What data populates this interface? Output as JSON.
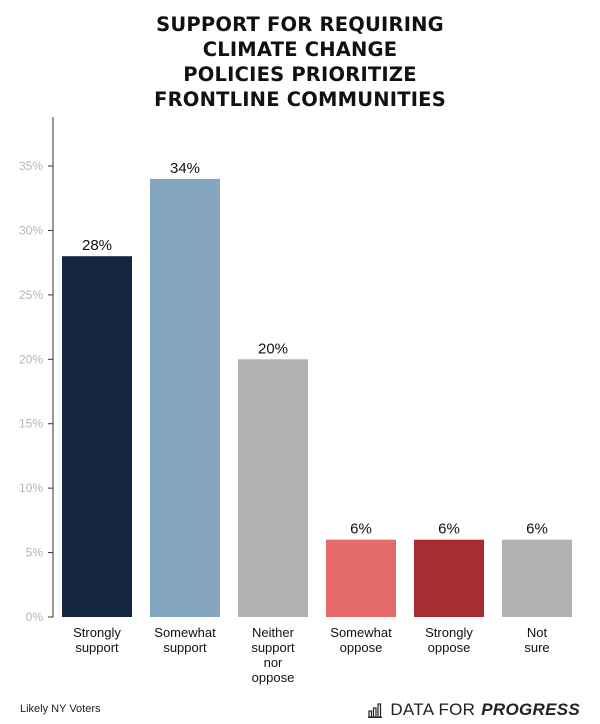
{
  "title_lines": [
    "SUPPORT FOR REQUIRING",
    "CLIMATE CHANGE",
    "POLICIES PRIORITIZE",
    "FRONTLINE COMMUNITIES"
  ],
  "footer": {
    "note": "Likely NY Voters",
    "brand_regular": "DATA FOR",
    "brand_bold": "PROGRESS",
    "brand_icon": "bar-chart-icon"
  },
  "chart_data": {
    "type": "bar",
    "title": "SUPPORT FOR REQUIRING CLIMATE CHANGE POLICIES PRIORITIZE FRONTLINE COMMUNITIES",
    "categories": [
      [
        "Strongly",
        "support"
      ],
      [
        "Somewhat",
        "support"
      ],
      [
        "Neither",
        "support",
        "nor",
        "oppose"
      ],
      [
        "Somewhat",
        "oppose"
      ],
      [
        "Strongly",
        "oppose"
      ],
      [
        "Not",
        "sure"
      ]
    ],
    "values": [
      28,
      34,
      20,
      6,
      6,
      6
    ],
    "value_labels": [
      "28%",
      "34%",
      "20%",
      "6%",
      "6%",
      "6%"
    ],
    "colors": [
      "#14263f",
      "#84a6bf",
      "#b2b2b2",
      "#e46a6c",
      "#a62d31",
      "#b2b2b2"
    ],
    "ylim": [
      0,
      39
    ],
    "yticks": [
      0,
      5,
      10,
      15,
      20,
      25,
      30,
      35
    ],
    "ytick_labels": [
      "0%",
      "5%",
      "10%",
      "15%",
      "20%",
      "25%",
      "30%",
      "35%"
    ],
    "xlabel": "",
    "ylabel": "",
    "grid": false,
    "legend": "none"
  }
}
